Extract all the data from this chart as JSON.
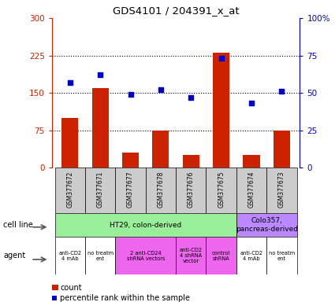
{
  "title": "GDS4101 / 204391_x_at",
  "samples": [
    "GSM377672",
    "GSM377671",
    "GSM377677",
    "GSM377678",
    "GSM377676",
    "GSM377675",
    "GSM377674",
    "GSM377673"
  ],
  "counts": [
    100,
    160,
    30,
    75,
    25,
    230,
    25,
    75
  ],
  "percentiles": [
    57,
    62,
    49,
    52,
    47,
    73,
    43,
    51
  ],
  "ylim_left": [
    0,
    300
  ],
  "ylim_right": [
    0,
    100
  ],
  "yticks_left": [
    0,
    75,
    150,
    225,
    300
  ],
  "yticks_right": [
    0,
    25,
    50,
    75,
    100
  ],
  "bar_color": "#cc2200",
  "dot_color": "#0000cc",
  "cell_line_labels": [
    {
      "label": "HT29, colon-derived",
      "span": [
        0,
        5
      ],
      "color": "#99ee99"
    },
    {
      "label": "Colo357,\npancreas-derived",
      "span": [
        6,
        7
      ],
      "color": "#bb88ff"
    }
  ],
  "agent_labels": [
    {
      "label": "anti-CD2\n4 mAb",
      "span": [
        0,
        0
      ],
      "color": "#ffffff"
    },
    {
      "label": "no treatm\nent",
      "span": [
        1,
        1
      ],
      "color": "#ffffff"
    },
    {
      "label": "2 anti-CD24\nshRNA vectors",
      "span": [
        2,
        3
      ],
      "color": "#ee66ee"
    },
    {
      "label": "anti-CD2\n4 shRNA\nvector",
      "span": [
        4,
        4
      ],
      "color": "#ee66ee"
    },
    {
      "label": "control\nshRNA",
      "span": [
        5,
        5
      ],
      "color": "#ee66ee"
    },
    {
      "label": "anti-CD2\n4 mAb",
      "span": [
        6,
        6
      ],
      "color": "#ffffff"
    },
    {
      "label": "no treatm\nent",
      "span": [
        7,
        7
      ],
      "color": "#ffffff"
    }
  ],
  "left_axis_color": "#cc2200",
  "right_axis_color": "#0000cc",
  "sample_box_color": "#cccccc"
}
